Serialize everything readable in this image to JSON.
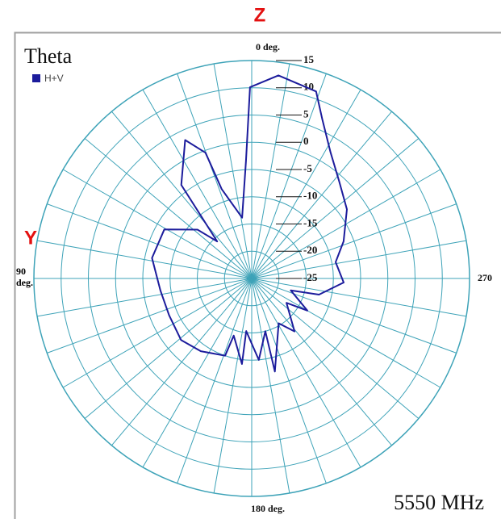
{
  "chart_data": {
    "type": "polar",
    "title": "Theta",
    "annotations": [
      "Z",
      "Y"
    ],
    "frequency_label": "5550 MHz",
    "zero_location": "top",
    "angle_direction": "counterclockwise",
    "rlim": [
      -25,
      15
    ],
    "rticks": [
      -25,
      -20,
      -15,
      -10,
      -5,
      0,
      5,
      10,
      15
    ],
    "thetaticks": [
      0,
      10,
      20,
      30,
      40,
      50,
      60,
      70,
      80,
      90,
      100,
      110,
      120,
      130,
      140,
      150,
      160,
      170,
      180,
      190,
      200,
      210,
      220,
      230,
      240,
      250,
      260,
      270,
      280,
      290,
      300,
      310,
      320,
      330,
      340,
      350
    ],
    "angle_labels": [
      {
        "value": 0,
        "label": "0 deg."
      },
      {
        "value": 90,
        "label": "90 deg."
      },
      {
        "value": 180,
        "label": "180 deg."
      },
      {
        "value": 270,
        "label": "270"
      }
    ],
    "grid": true,
    "grid_color": "#3ea3b8",
    "series": [
      {
        "name": "H+V",
        "color": "#1c1c9c",
        "theta": [
          0.5,
          2.8,
          9,
          18.6,
          20.2,
          25.7,
          37,
          43,
          48,
          60.7,
          78.4,
          97.6,
          114,
          131,
          145,
          161,
          162.5,
          173.5,
          174,
          185,
          194.5,
          194,
          211,
          219,
          235,
          240,
          253,
          256.5,
          267.5,
          281,
          292,
          306,
          318,
          328,
          336,
          341,
          352.5
        ],
        "values": [
          10.1,
          -3.4,
          -13.7,
          -7.7,
          -0.4,
          3.2,
          -3.5,
          -15.7,
          -11.6,
          -6.6,
          -6.3,
          -8.1,
          -8.4,
          -7.8,
          -8.7,
          -10,
          -14,
          -9.2,
          -15.3,
          -10,
          -15,
          -7.4,
          -15.4,
          -12.5,
          -17.2,
          -13.2,
          -17.5,
          -12.3,
          -8.1,
          -9.3,
          -6.8,
          -3.4,
          -1,
          2.3,
          6.9,
          11.3,
          12.6
        ]
      }
    ]
  }
}
